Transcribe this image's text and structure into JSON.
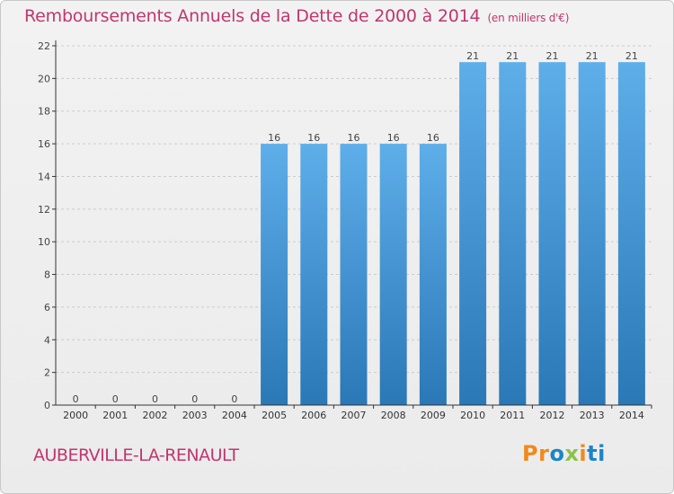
{
  "header": {
    "title": "Remboursements Annuels de la Dette de 2000 à 2014",
    "unit": "(en milliers d'€)"
  },
  "footer": {
    "commune": "AUBERVILLE-LA-RENAULT",
    "brand": "Proxiti"
  },
  "colors": {
    "title": "#c0366f",
    "bar_top": "#5eaeea",
    "bar_bottom": "#2a78b6",
    "axis": "#333333",
    "grid": "#cccccc",
    "brand_letters": [
      "#f08a1c",
      "#f08a1c",
      "#1a86c8",
      "#8bc34a",
      "#f08a1c",
      "#1a86c8",
      "#1a86c8"
    ]
  },
  "chart_data": {
    "type": "bar",
    "title": "Remboursements Annuels de la Dette de 2000 à 2014",
    "xlabel": "",
    "ylabel": "en milliers d'€",
    "categories": [
      "2000",
      "2001",
      "2002",
      "2003",
      "2004",
      "2005",
      "2006",
      "2007",
      "2008",
      "2009",
      "2010",
      "2011",
      "2012",
      "2013",
      "2014"
    ],
    "values": [
      0,
      0,
      0,
      0,
      0,
      16,
      16,
      16,
      16,
      16,
      21,
      21,
      21,
      21,
      21
    ],
    "ylim": [
      0,
      22
    ],
    "yticks": [
      0,
      2,
      4,
      6,
      8,
      10,
      12,
      14,
      16,
      18,
      20,
      22
    ],
    "grid": "horizontal dashed"
  }
}
